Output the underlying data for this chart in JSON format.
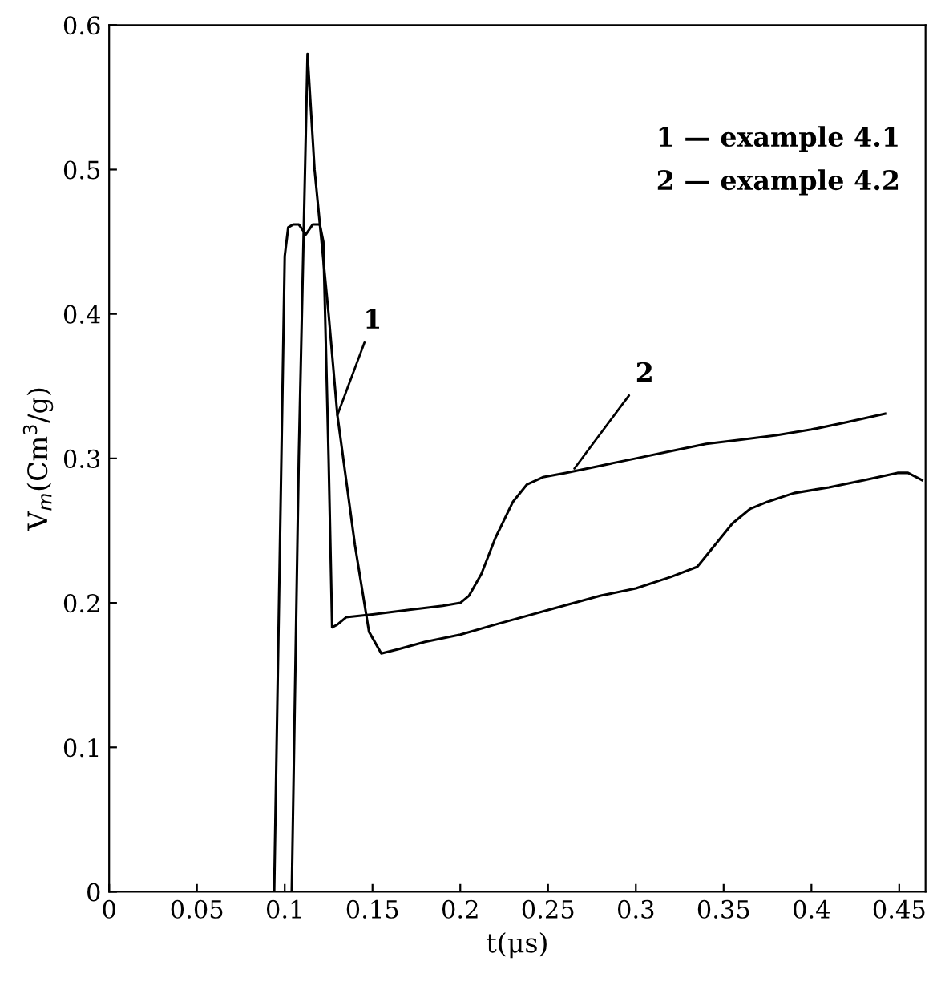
{
  "chart_data": {
    "type": "line",
    "xlabel": "t(μs)",
    "ylabel": "V$_{m}$(Cm$^{3}$/g)",
    "xlim": [
      0,
      0.465
    ],
    "ylim": [
      0,
      0.6
    ],
    "xticks": [
      {
        "value": 0,
        "label": "0"
      },
      {
        "value": 0.05,
        "label": "0.05"
      },
      {
        "value": 0.1,
        "label": "0.1"
      },
      {
        "value": 0.15,
        "label": "0.15"
      },
      {
        "value": 0.2,
        "label": "0.2"
      },
      {
        "value": 0.25,
        "label": "0.25"
      },
      {
        "value": 0.3,
        "label": "0.3"
      },
      {
        "value": 0.35,
        "label": "0.35"
      },
      {
        "value": 0.4,
        "label": "0.4"
      },
      {
        "value": 0.45,
        "label": "0.45"
      }
    ],
    "yticks": [
      {
        "value": 0,
        "label": "0"
      },
      0.1,
      0.2,
      0.3,
      0.4,
      0.5,
      0.6
    ],
    "grid": false,
    "marker": "none",
    "line_style": "solid",
    "series": [
      {
        "color": "#000000",
        "x": [
          0.104,
          0.108,
          0.113,
          0.117,
          0.125,
          0.13,
          0.14,
          0.148,
          0.155,
          0.165,
          0.18,
          0.2,
          0.22,
          0.25,
          0.28,
          0.3,
          0.32,
          0.335,
          0.345,
          0.355,
          0.365,
          0.375,
          0.39,
          0.41,
          0.43,
          0.449,
          0.455,
          0.463
        ],
        "values": [
          0,
          0.3,
          0.58,
          0.5,
          0.4,
          0.33,
          0.24,
          0.18,
          0.165,
          0.168,
          0.173,
          0.178,
          0.185,
          0.195,
          0.205,
          0.21,
          0.218,
          0.225,
          0.24,
          0.255,
          0.265,
          0.27,
          0.276,
          0.28,
          0.285,
          0.29,
          0.29,
          0.285
        ]
      },
      {
        "color": "#000000",
        "x": [
          0.094,
          0.1,
          0.102,
          0.105,
          0.108,
          0.112,
          0.116,
          0.12,
          0.122,
          0.125,
          0.127,
          0.13,
          0.135,
          0.15,
          0.17,
          0.19,
          0.2,
          0.205,
          0.212,
          0.22,
          0.23,
          0.238,
          0.247,
          0.26,
          0.28,
          0.3,
          0.32,
          0.34,
          0.36,
          0.38,
          0.4,
          0.42,
          0.442
        ],
        "values": [
          0,
          0.44,
          0.46,
          0.462,
          0.462,
          0.455,
          0.462,
          0.462,
          0.45,
          0.3,
          0.183,
          0.185,
          0.19,
          0.192,
          0.195,
          0.198,
          0.2,
          0.205,
          0.22,
          0.245,
          0.27,
          0.282,
          0.287,
          0.29,
          0.295,
          0.3,
          0.305,
          0.31,
          0.313,
          0.316,
          0.32,
          0.325,
          0.331
        ]
      }
    ],
    "annotations": [
      {
        "text": "1",
        "x": 0.13,
        "y": 0.33
      },
      {
        "text": "2",
        "x": 0.265,
        "y": 0.293
      },
      "1 — example 4.1",
      "2 — example 4.2"
    ]
  }
}
